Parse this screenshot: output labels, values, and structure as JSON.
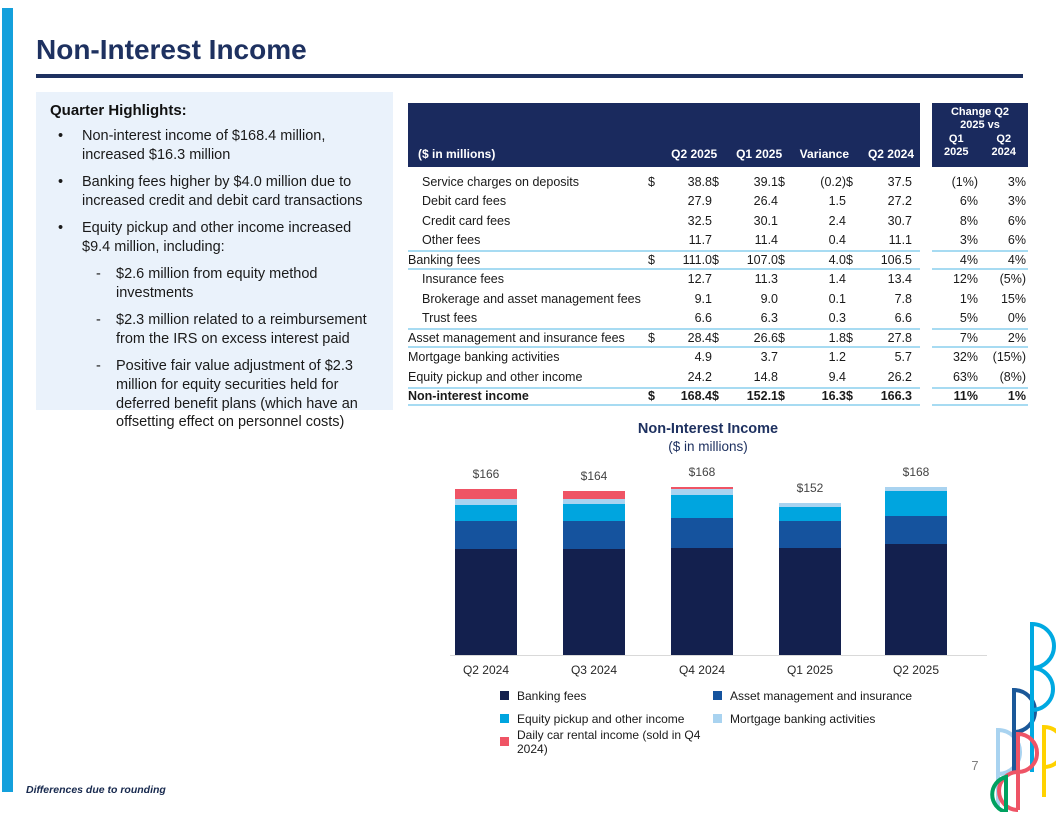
{
  "page": {
    "title": "Non-Interest Income",
    "page_number": "7",
    "footnote": "Differences due to rounding"
  },
  "colors": {
    "navy": "#1E3160",
    "header_bg": "#1A2A5E",
    "rule_blue": "#A7DBF2",
    "highlight_bg": "#EAF2FB",
    "stripe_cyan": "#14A0DC",
    "axis_gray": "#D9D9D9"
  },
  "highlights": {
    "heading": "Quarter Highlights:",
    "bullets": [
      {
        "level": 1,
        "text": "Non-interest income of $168.4 million, increased $16.3 million"
      },
      {
        "level": 1,
        "text": "Banking fees higher by $4.0 million due to increased credit and debit card transactions"
      },
      {
        "level": 1,
        "text": "Equity pickup and other income increased $9.4 million, including:"
      },
      {
        "level": 2,
        "text": "$2.6 million from equity method investments"
      },
      {
        "level": 2,
        "text": "$2.3 million related to a reimbursement from the IRS on excess interest paid"
      },
      {
        "level": 2,
        "text": "Positive fair value adjustment of $2.3 million for equity securities held for deferred benefit plans (which have an offsetting effect on personnel costs)"
      }
    ]
  },
  "table": {
    "unit_label": "($ in millions)",
    "col1": "Q2 2025",
    "col2": "Q1 2025",
    "col3": "Variance",
    "col4": "Q2 2024",
    "change_header": {
      "line1": "Change Q2",
      "line2": "2025 vs",
      "c1a": "Q1",
      "c1b": "2025",
      "c2a": "Q2",
      "c2b": "2024"
    },
    "rows": [
      {
        "label": "Service charges on deposits",
        "indent": true,
        "d1": "$",
        "v1": "38.8",
        "d2": "$",
        "v2": "39.1",
        "d3": "$",
        "v3": "(0.2)",
        "d4": "$",
        "v4": "37.5",
        "c1": "(1%)",
        "c2": "3%"
      },
      {
        "label": "Debit card fees",
        "indent": true,
        "d1": "",
        "v1": "27.9",
        "d2": "",
        "v2": "26.4",
        "d3": "",
        "v3": "1.5",
        "d4": "",
        "v4": "27.2",
        "c1": "6%",
        "c2": "3%"
      },
      {
        "label": "Credit card fees",
        "indent": true,
        "d1": "",
        "v1": "32.5",
        "d2": "",
        "v2": "30.1",
        "d3": "",
        "v3": "2.4",
        "d4": "",
        "v4": "30.7",
        "c1": "8%",
        "c2": "6%"
      },
      {
        "label": "Other fees",
        "indent": true,
        "d1": "",
        "v1": "11.7",
        "d2": "",
        "v2": "11.4",
        "d3": "",
        "v3": "0.4",
        "d4": "",
        "v4": "11.1",
        "c1": "3%",
        "c2": "6%"
      },
      {
        "label": "Banking fees",
        "indent": false,
        "rule_top": true,
        "rule_bottom": true,
        "d1": "$",
        "v1": "111.0",
        "d2": "$",
        "v2": "107.0",
        "d3": "$",
        "v3": "4.0",
        "d4": "$",
        "v4": "106.5",
        "c1": "4%",
        "c2": "4%"
      },
      {
        "label": "Insurance fees",
        "indent": true,
        "d1": "",
        "v1": "12.7",
        "d2": "",
        "v2": "11.3",
        "d3": "",
        "v3": "1.4",
        "d4": "",
        "v4": "13.4",
        "c1": "12%",
        "c2": "(5%)"
      },
      {
        "label": "Brokerage and asset management fees",
        "indent": true,
        "d1": "",
        "v1": "9.1",
        "d2": "",
        "v2": "9.0",
        "d3": "",
        "v3": "0.1",
        "d4": "",
        "v4": "7.8",
        "c1": "1%",
        "c2": "15%"
      },
      {
        "label": "Trust fees",
        "indent": true,
        "d1": "",
        "v1": "6.6",
        "d2": "",
        "v2": "6.3",
        "d3": "",
        "v3": "0.3",
        "d4": "",
        "v4": "6.6",
        "c1": "5%",
        "c2": "0%"
      },
      {
        "label": "Asset management and insurance fees",
        "indent": false,
        "rule_top": true,
        "rule_bottom": true,
        "d1": "$",
        "v1": "28.4",
        "d2": "$",
        "v2": "26.6",
        "d3": "$",
        "v3": "1.8",
        "d4": "$",
        "v4": "27.8",
        "c1": "7%",
        "c2": "2%"
      },
      {
        "label": "Mortgage banking activities",
        "indent": false,
        "d1": "",
        "v1": "4.9",
        "d2": "",
        "v2": "3.7",
        "d3": "",
        "v3": "1.2",
        "d4": "",
        "v4": "5.7",
        "c1": "32%",
        "c2": "(15%)"
      },
      {
        "label": "Equity pickup and other income",
        "indent": false,
        "d1": "",
        "v1": "24.2",
        "d2": "",
        "v2": "14.8",
        "d3": "",
        "v3": "9.4",
        "d4": "",
        "v4": "26.2",
        "c1": "63%",
        "c2": "(8%)"
      },
      {
        "label": "Non-interest income",
        "indent": false,
        "bold": true,
        "rule_top": true,
        "rule_bottom": true,
        "d1": "$",
        "v1": "168.4",
        "d2": "$",
        "v2": "152.1",
        "d3": "$",
        "v3": "16.3",
        "d4": "$",
        "v4": "166.3",
        "c1": "11%",
        "c2": "1%"
      }
    ]
  },
  "chart_data": {
    "type": "bar",
    "stacked": true,
    "title": "Non-Interest Income",
    "subtitle": "($ in millions)",
    "categories": [
      "Q2 2024",
      "Q3 2024",
      "Q4 2024",
      "Q1 2025",
      "Q2 2025"
    ],
    "series": [
      {
        "name": "Banking fees",
        "color": "#13204E",
        "values": [
          106.5,
          106.0,
          107.0,
          107.0,
          111.0
        ]
      },
      {
        "name": "Asset management and insurance",
        "color": "#15539E",
        "values": [
          27.8,
          28.0,
          30.0,
          26.6,
          28.4
        ]
      },
      {
        "name": "Equity pickup and other income",
        "color": "#00A5DF",
        "values": [
          16.0,
          17.0,
          23.0,
          14.8,
          24.2
        ]
      },
      {
        "name": "Mortgage banking activities",
        "color": "#A9D3F0",
        "values": [
          5.7,
          5.0,
          6.0,
          3.7,
          4.9
        ]
      },
      {
        "name": "Daily car rental income (sold in Q4 2024)",
        "color": "#EF5465",
        "values": [
          10.0,
          8.0,
          2.0,
          0,
          0
        ]
      }
    ],
    "totals_labels": [
      "$166",
      "$164",
      "$168",
      "$152",
      "$168"
    ],
    "ylim": [
      0,
      185
    ],
    "grid": false,
    "legend_position": "bottom"
  },
  "legend": {
    "items": [
      {
        "label": "Banking fees",
        "color": "#13204E"
      },
      {
        "label": "Asset management and insurance",
        "color": "#15539E"
      },
      {
        "label": "Equity pickup and other income",
        "color": "#00A5DF"
      },
      {
        "label": "Mortgage banking activities",
        "color": "#A9D3F0"
      },
      {
        "label": "Daily car rental income (sold in Q4 2024)",
        "color": "#EF5465"
      }
    ]
  }
}
